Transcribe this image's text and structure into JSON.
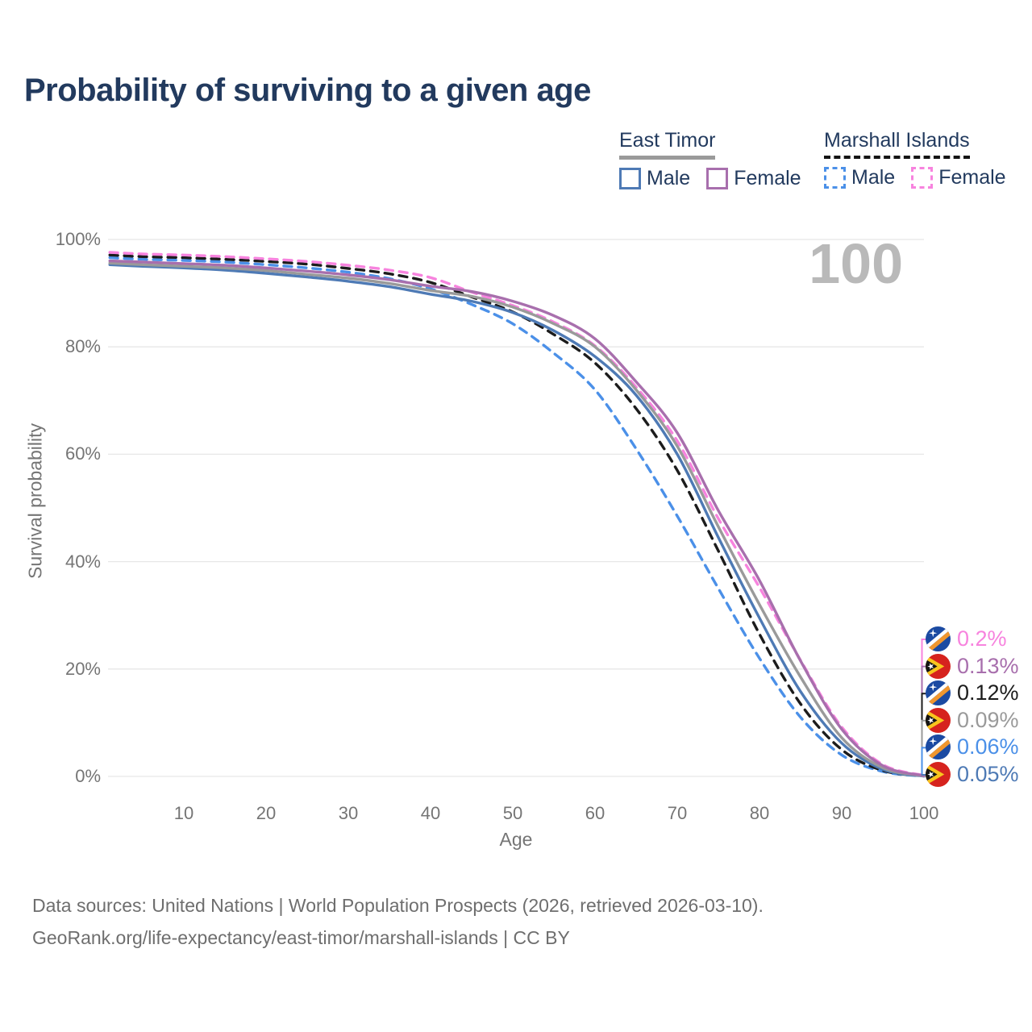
{
  "title": "Probability of surviving to a given age",
  "legend": {
    "groups": [
      {
        "label": "East Timor",
        "line_style": "solid",
        "underline_color": "#9a9a9a",
        "items": [
          {
            "label": "Male",
            "color": "#4e7ab5"
          },
          {
            "label": "Female",
            "color": "#a86fad"
          }
        ]
      },
      {
        "label": "Marshall Islands",
        "line_style": "dashed",
        "underline_color": "#141414",
        "items": [
          {
            "label": "Male",
            "color": "#4b90e8"
          },
          {
            "label": "Female",
            "color": "#f783de"
          }
        ]
      }
    ]
  },
  "watermark": "100",
  "footer": {
    "line1": "Data sources: United Nations | World Population Prospects (2026, retrieved 2026-03-10).",
    "line2": "GeoRank.org/life-expectancy/east-timor/marshall-islands | CC BY"
  },
  "chart_data": {
    "type": "line",
    "title": "Probability of surviving to a given age",
    "xlabel": "Age",
    "ylabel": "Survival probability",
    "xlim": [
      1,
      100
    ],
    "ylim": [
      0,
      100
    ],
    "grid": "horizontal",
    "x_ticks": [
      10,
      20,
      30,
      40,
      50,
      60,
      70,
      80,
      90,
      100
    ],
    "y_ticks": [
      {
        "value": 0,
        "label": "0%"
      },
      {
        "value": 20,
        "label": "20%"
      },
      {
        "value": 40,
        "label": "40%"
      },
      {
        "value": 60,
        "label": "60%"
      },
      {
        "value": 80,
        "label": "80%"
      },
      {
        "value": 100,
        "label": "100%"
      }
    ],
    "ages": [
      1,
      5,
      10,
      15,
      20,
      25,
      30,
      35,
      40,
      45,
      50,
      55,
      60,
      65,
      70,
      75,
      80,
      85,
      90,
      95,
      100
    ],
    "series": [
      {
        "id": "marshall-islands-male",
        "name": "Marshall Islands Male",
        "country": "marshall-islands",
        "sex": "male",
        "color": "#4b90e8",
        "dashed": true,
        "end_label": "0.06%",
        "values": [
          96.6,
          96.3,
          96.1,
          95.8,
          95.3,
          94.7,
          93.9,
          92.7,
          90.8,
          87.9,
          84.3,
          78.8,
          72.0,
          61.0,
          48.5,
          35.0,
          22.0,
          11.0,
          4.0,
          0.9,
          0.06
        ]
      },
      {
        "id": "marshall-islands-both",
        "name": "Marshall Islands",
        "country": "marshall-islands",
        "sex": "both",
        "color": "#1c1c1c",
        "dashed": true,
        "end_label": "0.12%",
        "values": [
          97.1,
          96.8,
          96.6,
          96.3,
          95.9,
          95.4,
          94.6,
          93.6,
          92.0,
          89.3,
          86.5,
          82.3,
          77.0,
          68.5,
          57.0,
          42.0,
          26.5,
          13.5,
          5.0,
          1.1,
          0.12
        ]
      },
      {
        "id": "marshall-islands-female",
        "name": "Marshall Islands Female",
        "country": "marshall-islands",
        "sex": "female",
        "color": "#f783de",
        "dashed": true,
        "end_label": "0.2%",
        "values": [
          97.6,
          97.3,
          97.1,
          96.8,
          96.4,
          95.9,
          95.2,
          94.3,
          92.9,
          90.2,
          87.7,
          84.6,
          80.2,
          72.5,
          62.5,
          48.0,
          35.2,
          21.6,
          9.2,
          2.2,
          0.2
        ]
      },
      {
        "id": "east-timor-male",
        "name": "East Timor Male",
        "country": "east-timor",
        "sex": "male",
        "color": "#4e7ab5",
        "dashed": false,
        "end_label": "0.05%",
        "values": [
          95.3,
          95.0,
          94.7,
          94.3,
          93.7,
          93.0,
          92.2,
          91.2,
          89.8,
          88.5,
          86.4,
          83.0,
          78.2,
          71.0,
          60.0,
          44.5,
          29.5,
          15.8,
          6.2,
          1.3,
          0.05
        ]
      },
      {
        "id": "east-timor-both",
        "name": "East Timor",
        "country": "east-timor",
        "sex": "both",
        "color": "#9a9a9a",
        "dashed": false,
        "end_label": "0.09%",
        "values": [
          95.6,
          95.3,
          95.0,
          94.7,
          94.2,
          93.5,
          92.8,
          91.8,
          90.5,
          89.4,
          87.4,
          84.3,
          80.0,
          72.0,
          61.5,
          46.5,
          32.0,
          18.5,
          7.2,
          1.6,
          0.09
        ]
      },
      {
        "id": "east-timor-female",
        "name": "East Timor Female",
        "country": "east-timor",
        "sex": "female",
        "color": "#a86fad",
        "dashed": false,
        "end_label": "0.13%",
        "values": [
          96.0,
          95.8,
          95.5,
          95.2,
          94.7,
          94.1,
          93.4,
          92.5,
          91.3,
          90.3,
          88.5,
          85.8,
          81.5,
          73.5,
          64.0,
          49.5,
          36.5,
          21.5,
          8.8,
          2.0,
          0.13
        ]
      }
    ],
    "end_labels_top_to_bottom": [
      "0.2%",
      "0.13%",
      "0.12%",
      "0.09%",
      "0.06%",
      "0.05%"
    ]
  }
}
